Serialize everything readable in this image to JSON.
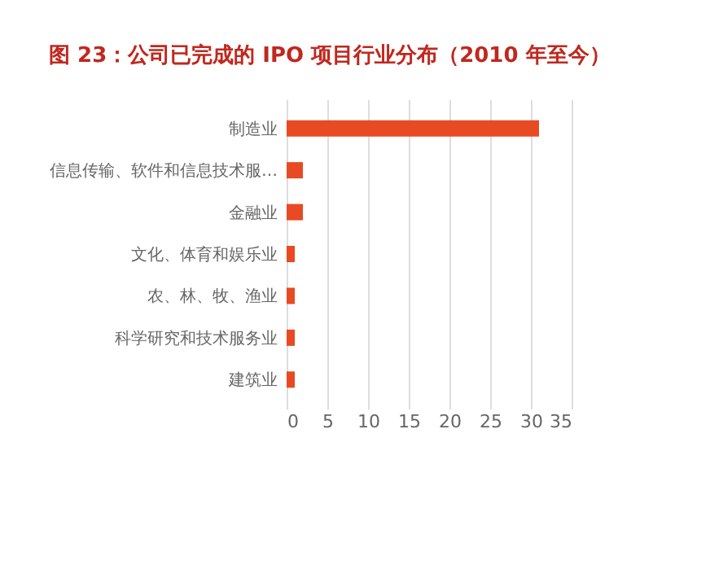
{
  "chart_data": {
    "type": "bar",
    "orientation": "horizontal",
    "title": "图 23：公司已完成的 IPO 项目行业分布（2010 年至今）",
    "categories": [
      "制造业",
      "信息传输、软件和信息技术服…",
      "金融业",
      "文化、体育和娱乐业",
      "农、林、牧、渔业",
      "科学研究和技术服务业",
      "建筑业"
    ],
    "values": [
      31,
      2,
      2,
      1,
      1,
      1,
      1
    ],
    "color": "#e84a23",
    "xlim": [
      0,
      35
    ],
    "xticks": [
      0,
      5,
      10,
      15,
      20,
      25,
      30,
      35
    ],
    "grid": "x"
  }
}
